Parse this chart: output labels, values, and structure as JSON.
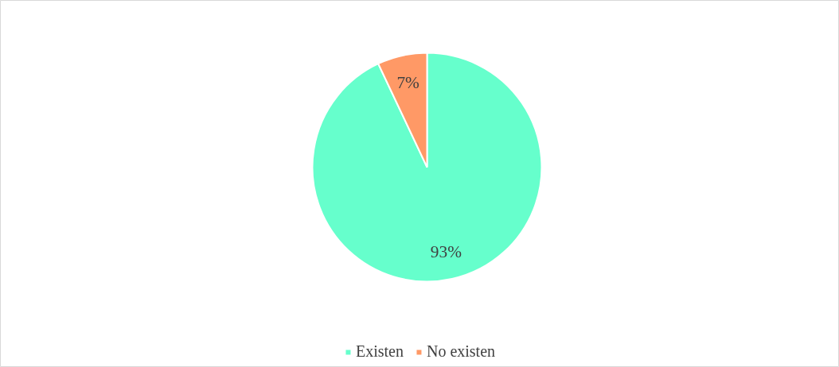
{
  "chart_data": {
    "type": "pie",
    "categories": [
      "Existen",
      "No existen"
    ],
    "values": [
      93,
      7
    ],
    "colors": [
      "#66ffcc",
      "#ff9966"
    ],
    "value_labels": [
      "93%",
      "7%"
    ],
    "legend": "bottom"
  }
}
